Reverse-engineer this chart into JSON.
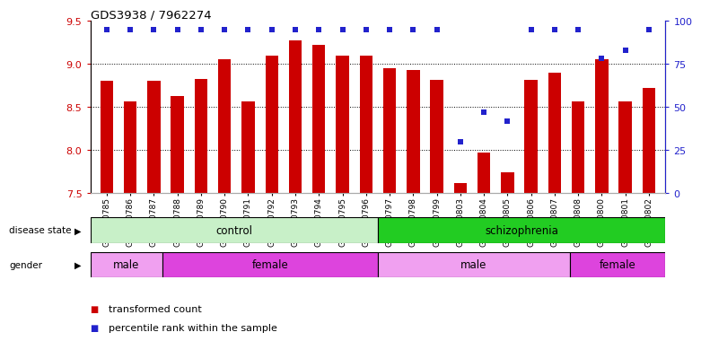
{
  "title": "GDS3938 / 7962274",
  "samples": [
    "GSM630785",
    "GSM630786",
    "GSM630787",
    "GSM630788",
    "GSM630789",
    "GSM630790",
    "GSM630791",
    "GSM630792",
    "GSM630793",
    "GSM630794",
    "GSM630795",
    "GSM630796",
    "GSM630797",
    "GSM630798",
    "GSM630799",
    "GSM630803",
    "GSM630804",
    "GSM630805",
    "GSM630806",
    "GSM630807",
    "GSM630808",
    "GSM630800",
    "GSM630801",
    "GSM630802"
  ],
  "bar_values": [
    8.8,
    8.56,
    8.8,
    8.63,
    8.83,
    9.05,
    8.57,
    9.1,
    9.27,
    9.22,
    9.1,
    9.1,
    8.95,
    8.93,
    8.82,
    7.62,
    7.97,
    7.74,
    8.82,
    8.9,
    8.57,
    9.05,
    8.57,
    8.72
  ],
  "percentile_values": [
    95,
    95,
    95,
    95,
    95,
    95,
    95,
    95,
    95,
    95,
    95,
    95,
    95,
    95,
    95,
    30,
    47,
    42,
    95,
    95,
    95,
    78,
    83,
    95
  ],
  "bar_color": "#cc0000",
  "percentile_color": "#2222cc",
  "ylim_left": [
    7.5,
    9.5
  ],
  "ylim_right": [
    0,
    100
  ],
  "yticks_left": [
    7.5,
    8.0,
    8.5,
    9.0,
    9.5
  ],
  "yticks_right": [
    0,
    25,
    50,
    75,
    100
  ],
  "disease_state_groups": [
    {
      "label": "control",
      "start": 0,
      "end": 12,
      "color": "#c8f0c8"
    },
    {
      "label": "schizophrenia",
      "start": 12,
      "end": 24,
      "color": "#22cc22"
    }
  ],
  "gender_groups": [
    {
      "label": "male",
      "start": 0,
      "end": 3,
      "color": "#f0a0f0"
    },
    {
      "label": "female",
      "start": 3,
      "end": 12,
      "color": "#dd44dd"
    },
    {
      "label": "male",
      "start": 12,
      "end": 20,
      "color": "#f0a0f0"
    },
    {
      "label": "female",
      "start": 20,
      "end": 24,
      "color": "#dd44dd"
    }
  ],
  "legend_items": [
    {
      "label": "transformed count",
      "color": "#cc0000"
    },
    {
      "label": "percentile rank within the sample",
      "color": "#2222cc"
    }
  ],
  "grid_dotted_at": [
    8.0,
    8.5,
    9.0
  ],
  "n_samples": 24
}
